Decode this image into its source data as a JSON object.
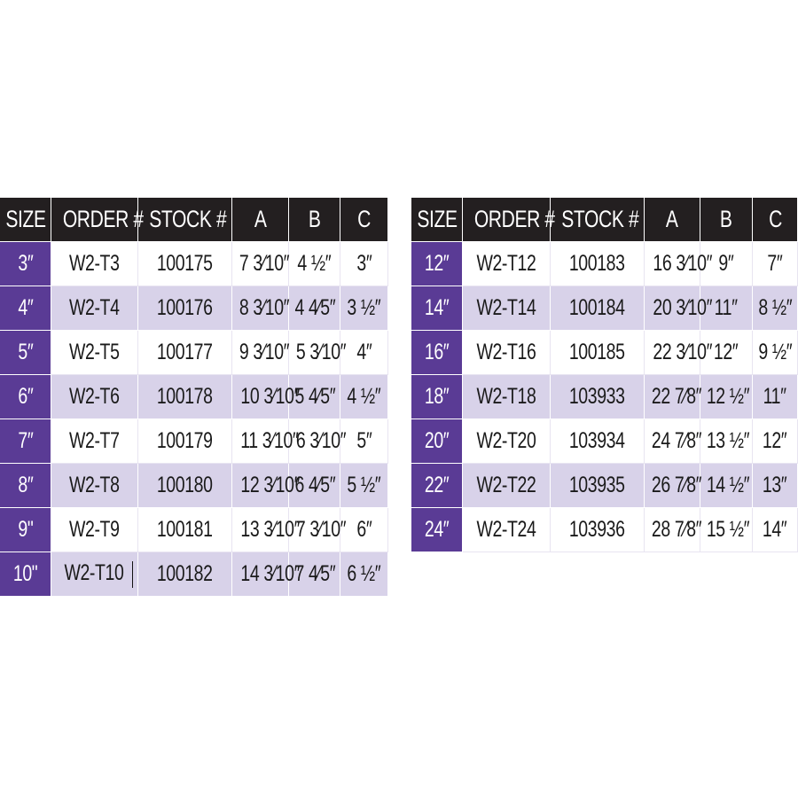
{
  "colors": {
    "header_bg": "#231f20",
    "size_bg": "#5a3b95",
    "alt_row_bg": "#d8d2e9"
  },
  "headers": [
    "SIZE",
    "ORDER #",
    "STOCK #",
    "A",
    "B",
    "C"
  ],
  "left_table": {
    "rows": [
      [
        "3″",
        "W2-T3",
        "100175",
        "7 3⁄10″",
        "4 ½″",
        "3″"
      ],
      [
        "4″",
        "W2-T4",
        "100176",
        "8 3⁄10″",
        "4 4⁄5″",
        "3 ½″"
      ],
      [
        "5″",
        "W2-T5",
        "100177",
        "9 3⁄10″",
        "5 3⁄10″",
        "4″"
      ],
      [
        "6″",
        "W2-T6",
        "100178",
        "10 3⁄10″",
        "5 4⁄5″",
        "4 ½″"
      ],
      [
        "7″",
        "W2-T7",
        "100179",
        "11 3⁄10″",
        "6 3⁄10″",
        "5″"
      ],
      [
        "8″",
        "W2-T8",
        "100180",
        "12 3⁄10″",
        "6 4⁄5″",
        "5 ½″"
      ],
      [
        "9\"",
        "W2-T9",
        "100181",
        "13 3⁄10″",
        "7 3⁄10″",
        "6″"
      ],
      [
        "10\"",
        "W2-T10",
        "100182",
        "14 3⁄10″",
        "7 4⁄5″",
        "6 ½″"
      ]
    ]
  },
  "right_table": {
    "rows": [
      [
        "12″",
        "W2-T12",
        "100183",
        "16 3⁄10″",
        "9″",
        "7″"
      ],
      [
        "14″",
        "W2-T14",
        "100184",
        "20 3⁄10″",
        "11″",
        "8 ½″"
      ],
      [
        "16″",
        "W2-T16",
        "100185",
        "22 3⁄10″",
        "12″",
        "9 ½″"
      ],
      [
        "18″",
        "W2-T18",
        "103933",
        "22 7⁄8″",
        "12 ½″",
        "11″"
      ],
      [
        "20″",
        "W2-T20",
        "103934",
        "24 7⁄8″",
        "13 ½″",
        "12″"
      ],
      [
        "22″",
        "W2-T22",
        "103935",
        "26 7⁄8″",
        "14 ½″",
        "13″"
      ],
      [
        "24″",
        "W2-T24",
        "103936",
        "28 7⁄8″",
        "15 ½″",
        "14″"
      ]
    ]
  }
}
